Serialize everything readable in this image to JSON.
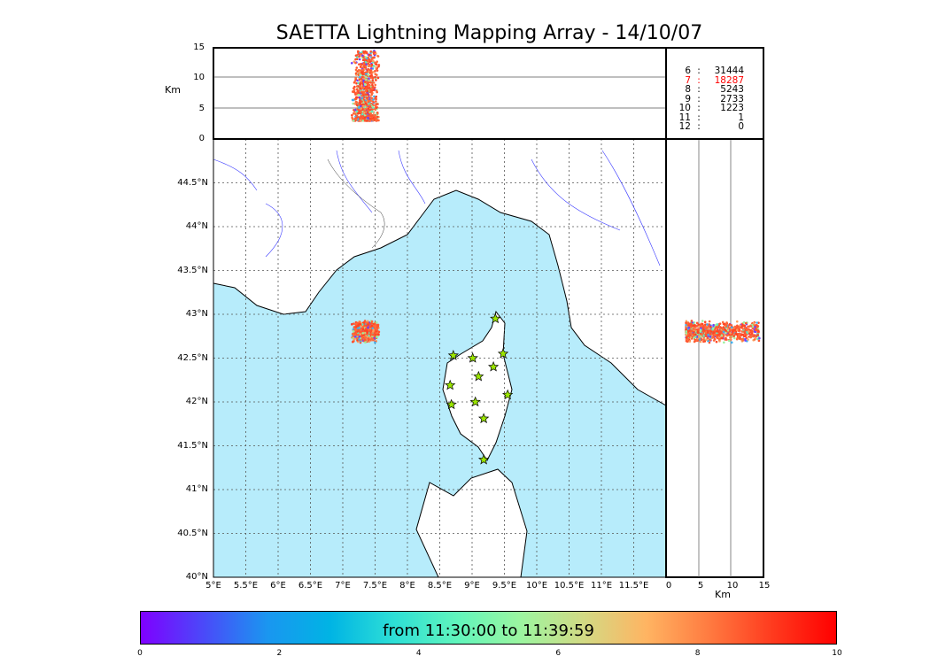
{
  "chart_data": {
    "type": "scatter",
    "title": "SAETTA Lightning Mapping Array - 14/10/07",
    "map": {
      "xlim": [
        5,
        12
      ],
      "ylim": [
        40,
        45
      ],
      "x_ticks": [
        "5°E",
        "5.5°E",
        "6°E",
        "6.5°E",
        "7°E",
        "7.5°E",
        "8°E",
        "8.5°E",
        "9°E",
        "9.5°E",
        "10°E",
        "10.5°E",
        "11°E",
        "11.5°E"
      ],
      "y_ticks": [
        "40°N",
        "40.5°N",
        "41°N",
        "41.5°N",
        "42°N",
        "42.5°N",
        "43°N",
        "43.5°N",
        "44°N",
        "44.5°N"
      ]
    },
    "altitude_panel": {
      "ylabel": "Km",
      "ylim": [
        0,
        15
      ],
      "y_ticks": [
        "0",
        "5",
        "10",
        "15"
      ]
    },
    "side_panel": {
      "xlabel": "Km",
      "xlim": [
        0,
        15
      ],
      "x_ticks": [
        "0",
        "5",
        "10",
        "15"
      ]
    },
    "stations": [
      [
        9.36,
        42.95
      ],
      [
        8.71,
        42.53
      ],
      [
        9.01,
        42.5
      ],
      [
        9.48,
        42.55
      ],
      [
        9.33,
        42.4
      ],
      [
        9.1,
        42.29
      ],
      [
        8.66,
        42.19
      ],
      [
        9.55,
        42.08
      ],
      [
        9.05,
        42.0
      ],
      [
        8.68,
        41.97
      ],
      [
        9.18,
        41.81
      ],
      [
        9.18,
        41.34
      ]
    ],
    "lightning_source": {
      "lon_range": [
        7.15,
        7.55
      ],
      "lat_range": [
        42.68,
        42.92
      ],
      "alt_range_km": [
        3,
        14.5
      ]
    },
    "station_counts": [
      {
        "stations": "6",
        "count": "31444"
      },
      {
        "stations": "7",
        "count": "18287"
      },
      {
        "stations": "8",
        "count": "5243"
      },
      {
        "stations": "9",
        "count": "2733"
      },
      {
        "stations": "10",
        "count": "1223"
      },
      {
        "stations": "11",
        "count": "1"
      },
      {
        "stations": "12",
        "count": "0"
      }
    ],
    "highlight_color": "#ff0000",
    "colorbar": {
      "label": "from 11:30:00 to 11:39:59",
      "ticks": [
        "0",
        "2",
        "4",
        "6",
        "8",
        "10"
      ],
      "range": [
        0,
        10
      ]
    }
  }
}
